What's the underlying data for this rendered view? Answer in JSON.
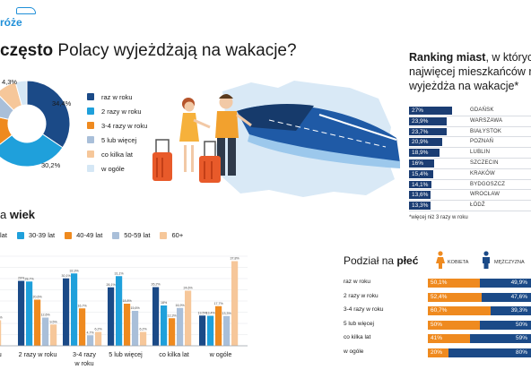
{
  "brand": {
    "logo_text": "róże"
  },
  "header": {
    "title_bold": "często",
    "title_rest": " Polacy wyjeżdżają na wakacje?"
  },
  "colors": {
    "raz_w_roku": "#1b4a87",
    "dwa_razy": "#1fa0db",
    "trzy_cztery": "#ef8a1f",
    "piec_wiecej": "#a9bfd9",
    "co_kilka_lat": "#f6c79a",
    "w_ogole": "#d5e7f5",
    "rank_bar": "#1b3d73",
    "kobieta": "#ef8a1f",
    "mezczyzna": "#1b4a87"
  },
  "frequency_legend": [
    {
      "label": "raz w roku",
      "color": "#1b4a87"
    },
    {
      "label": "2 razy w roku",
      "color": "#1fa0db"
    },
    {
      "label": "3-4 razy w roku",
      "color": "#ef8a1f"
    },
    {
      "label": "5 lub więcej",
      "color": "#a9bfd9"
    },
    {
      "label": "co kilka lat",
      "color": "#f6c79a"
    },
    {
      "label": "w ogóle",
      "color": "#d5e7f5"
    }
  ],
  "ranking": {
    "title_bold": "Ranking miast",
    "title_line1_rest": ", w których",
    "title_line2": "najwięcej mieszkańców r",
    "title_line3": "wyjeżdża na wakacje*",
    "note": "*więcej niż 3 razy w roku",
    "max_value": 27
  },
  "age": {
    "title_bold": "wiek",
    "title_prefix": "a "
  },
  "age_legend": [
    {
      "label": "lat",
      "color": "#1b4a87"
    },
    {
      "label": "30-39 lat",
      "color": "#1fa0db"
    },
    {
      "label": "40-49 lat",
      "color": "#ef8a1f"
    },
    {
      "label": "50-59 lat",
      "color": "#a9bfd9"
    },
    {
      "label": "60+",
      "color": "#f6c79a"
    }
  ],
  "gender": {
    "title_prefix": "Podział na ",
    "title_bold": "płeć",
    "kobieta_label": "KOBIETA",
    "mezczyzna_label": "MĘŻCZYZNA",
    "rows": [
      {
        "label": "raz w roku",
        "k": 50.1,
        "m": 49.9,
        "k_text": "50,1%",
        "m_text": "49,9%"
      },
      {
        "label": "2 razy w roku",
        "k": 52.4,
        "m": 47.6,
        "k_text": "52,4%",
        "m_text": "47,6%"
      },
      {
        "label": "3-4 razy w roku",
        "k": 60.7,
        "m": 39.3,
        "k_text": "60,7%",
        "m_text": "39,3%"
      },
      {
        "label": "5 lub więcej",
        "k": 50,
        "m": 50,
        "k_text": "50%",
        "m_text": "50%"
      },
      {
        "label": "co kilka lat",
        "k": 41,
        "m": 59,
        "k_text": "41%",
        "m_text": "59%"
      },
      {
        "label": "w ogóle",
        "k": 20,
        "m": 80,
        "k_text": "20%",
        "m_text": "80%"
      }
    ]
  },
  "chart_data": [
    {
      "type": "pie",
      "categories": [
        "raz w roku",
        "2 razy w roku",
        "3-4 razy w roku",
        "5 lub więcej",
        "co kilka lat",
        "w ogóle"
      ],
      "values": [
        34.4,
        30.2,
        14.0,
        9.0,
        8.1,
        4.3
      ],
      "value_labels": [
        "34,4%",
        "30,2%",
        "",
        "",
        "",
        "4,3%"
      ],
      "title": "",
      "inner_radius_ratio": 0.45
    },
    {
      "type": "bar",
      "title": "Ranking miast",
      "categories": [
        "GDAŃSK",
        "WARSZAWA",
        "BIAŁYSTOK",
        "POZNAŃ",
        "LUBLIN",
        "SZCZECIN",
        "KRAKÓW",
        "BYDGOSZCZ",
        "WROCŁAW",
        "ŁÓDŹ"
      ],
      "values": [
        27,
        23.9,
        23.7,
        20.9,
        18.9,
        16,
        15.4,
        14.1,
        13.6,
        13.3
      ],
      "value_labels": [
        "27%",
        "23,9%",
        "23,7%",
        "20,9%",
        "18,9%",
        "16%",
        "15,4%",
        "14,1%",
        "13,6%",
        "13,3%"
      ]
    },
    {
      "type": "bar",
      "title": "wiek",
      "categories": [
        "",
        "2 razy w roku",
        "3-4 razy\nw roku",
        "5 lub więcej",
        "co kilka lat",
        "w ogóle"
      ],
      "category_labels": [
        "oku",
        "2 razy w roku",
        "3-4 razy",
        "5 lub więcej",
        "co kilka lat",
        "w ogóle"
      ],
      "category_labels_line2": [
        "",
        "",
        "w roku",
        "",
        "",
        ""
      ],
      "series": [
        {
          "name": "lat",
          "values": [
            null,
            29,
            30.1,
            26.1,
            26.2,
            13.5
          ]
        },
        {
          "name": "30-39 lat",
          "values": [
            null,
            28.7,
            32.3,
            31.1,
            18,
            13.4
          ]
        },
        {
          "name": "40-49 lat",
          "values": [
            null,
            20.6,
            16.7,
            18.8,
            12.3,
            17.7
          ]
        },
        {
          "name": "50-59 lat",
          "values": [
            13.5,
            12.6,
            4.7,
            15.6,
            16.9,
            13.3
          ]
        },
        {
          "name": "60+",
          "values": [
            11.4,
            9.5,
            6.2,
            6.2,
            24.6,
            37.8
          ]
        }
      ],
      "value_labels": [
        [
          null,
          "29%",
          "30,1%",
          "26,1%",
          "26,2%",
          "13,5%"
        ],
        [
          null,
          "28,7%",
          "32,3%",
          "31,1%",
          "18%",
          "13,4%"
        ],
        [
          null,
          "20,6%",
          "16,7%",
          "18,8%",
          "12,3%",
          "17,7%"
        ],
        [
          "13,5%",
          "12,6%",
          "4,7%",
          "15,6%",
          "16,9%",
          "13,3%"
        ],
        [
          "11,4%",
          "9,5%",
          "6,2%",
          "6,2%",
          "24,6%",
          "37,8%"
        ]
      ],
      "ylim": [
        0,
        40
      ],
      "grid": true
    }
  ]
}
